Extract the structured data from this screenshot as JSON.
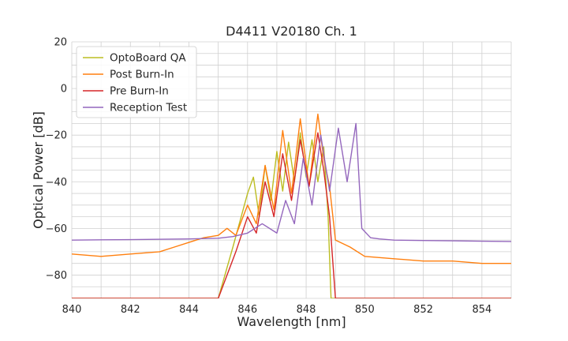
{
  "chart_data": {
    "type": "line",
    "title": "D4411 V20180 Ch. 1",
    "xlabel": "Wavelength [nm]",
    "ylabel": "Optical Power [dB]",
    "xlim": [
      840,
      855
    ],
    "ylim": [
      -90,
      20
    ],
    "x_ticks": [
      840,
      842,
      844,
      846,
      848,
      850,
      852,
      854
    ],
    "y_ticks": [
      20,
      0,
      -20,
      -40,
      -60,
      -80
    ],
    "x_tick_labels": [
      "840",
      "842",
      "844",
      "846",
      "848",
      "850",
      "852",
      "854"
    ],
    "y_tick_labels": [
      "20",
      "0",
      "−20",
      "−40",
      "−60",
      "−80"
    ],
    "grid": true,
    "legend_position": "top-left",
    "series": [
      {
        "name": "OptoBoard QA",
        "color": "#bcbd22",
        "x": [
          840.0,
          844.0,
          845.0,
          845.5,
          846.0,
          846.2,
          846.4,
          846.6,
          846.8,
          847.0,
          847.2,
          847.4,
          847.6,
          847.8,
          848.0,
          848.2,
          848.4,
          848.6,
          848.75,
          848.85,
          849.0,
          850.0,
          855.0
        ],
        "y": [
          -90,
          -90,
          -90,
          -68,
          -45,
          -38,
          -55,
          -33,
          -48,
          -27,
          -44,
          -23,
          -40,
          -19,
          -38,
          -22,
          -40,
          -25,
          -55,
          -90,
          -90,
          -90,
          -90
        ]
      },
      {
        "name": "Post Burn-In",
        "color": "#ff7f0e",
        "x": [
          840.0,
          841.0,
          842.0,
          843.0,
          843.5,
          844.0,
          844.5,
          845.0,
          845.3,
          845.6,
          846.0,
          846.3,
          846.6,
          846.9,
          847.2,
          847.5,
          847.8,
          848.1,
          848.4,
          848.6,
          848.8,
          849.0,
          849.5,
          850.0,
          851.0,
          852.0,
          853.0,
          854.0,
          855.0
        ],
        "y": [
          -71,
          -72,
          -71,
          -70,
          -68,
          -66,
          -64,
          -63,
          -60,
          -63,
          -50,
          -58,
          -33,
          -52,
          -18,
          -45,
          -13,
          -42,
          -11,
          -30,
          -42,
          -65,
          -68,
          -72,
          -73,
          -74,
          -74,
          -75,
          -75
        ]
      },
      {
        "name": "Pre Burn-In",
        "color": "#d62728",
        "x": [
          840.0,
          843.0,
          845.0,
          845.6,
          846.0,
          846.3,
          846.6,
          846.9,
          847.2,
          847.5,
          847.8,
          848.1,
          848.4,
          848.6,
          848.8,
          849.0,
          850.0,
          855.0
        ],
        "y": [
          -90,
          -90,
          -90,
          -70,
          -55,
          -62,
          -40,
          -55,
          -28,
          -48,
          -22,
          -42,
          -19,
          -35,
          -55,
          -90,
          -90,
          -90
        ]
      },
      {
        "name": "Reception Test",
        "color": "#9467bd",
        "x": [
          840.0,
          842.0,
          844.0,
          845.0,
          845.5,
          846.0,
          846.5,
          847.0,
          847.3,
          847.6,
          847.9,
          848.2,
          848.5,
          848.8,
          849.1,
          849.4,
          849.7,
          849.9,
          850.2,
          850.5,
          851.0,
          852.0,
          853.0,
          854.0,
          855.0
        ],
        "y": [
          -65,
          -64.8,
          -64.5,
          -64.2,
          -63.5,
          -62,
          -58,
          -62,
          -48,
          -58,
          -30,
          -50,
          -20,
          -44,
          -17,
          -40,
          -15,
          -60,
          -64,
          -64.5,
          -65,
          -65.2,
          -65.3,
          -65.5,
          -65.6
        ]
      }
    ]
  }
}
